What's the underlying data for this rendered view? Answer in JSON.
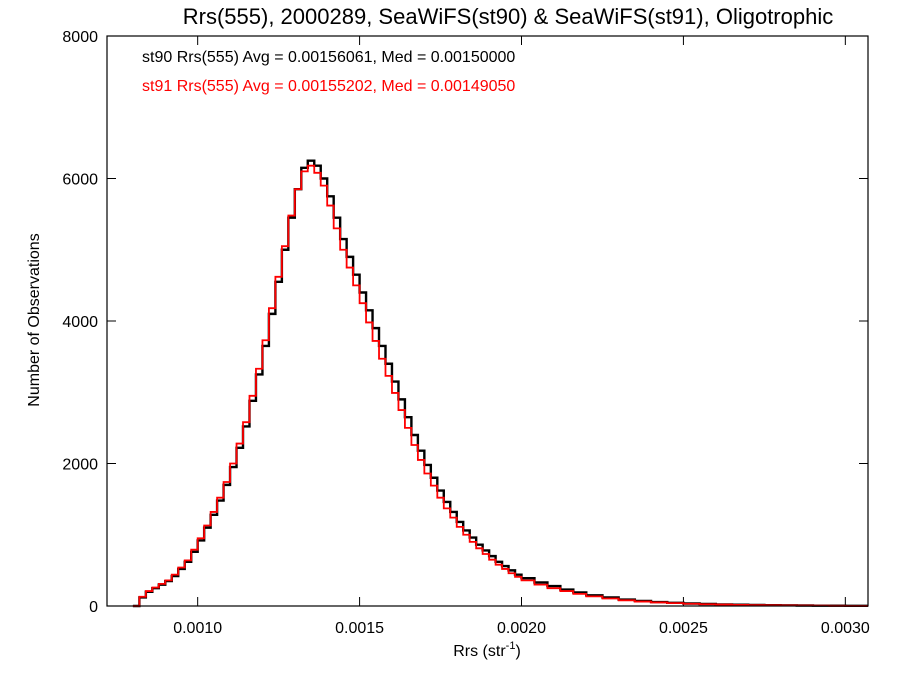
{
  "chart_data": {
    "type": "line",
    "title": "Rrs(555), 2000289, SeaWiFS(st90) & SeaWiFS(st91), Oligotrophic",
    "xlabel": "Rrs (str",
    "xlabel_sup": "-1",
    "xlabel_end": ")",
    "ylabel": "Number of Observations",
    "xlim": [
      0.00072,
      0.00307
    ],
    "ylim": [
      0,
      8000
    ],
    "xticks": [
      0.001,
      0.0015,
      0.002,
      0.0025,
      0.003
    ],
    "xtick_labels": [
      "0.0010",
      "0.0015",
      "0.0020",
      "0.0025",
      "0.0030"
    ],
    "yticks": [
      0,
      2000,
      4000,
      6000,
      8000
    ],
    "ytick_labels": [
      "0",
      "2000",
      "4000",
      "6000",
      "8000"
    ],
    "grid": false,
    "legend_placement": "top-left",
    "annotations": [
      {
        "text": "st90 Rrs(555) Avg = 0.00156061, Med = 0.00150000",
        "color": "#000000"
      },
      {
        "text": "st91 Rrs(555) Avg = 0.00155202, Med = 0.00149050",
        "color": "#ff0000"
      }
    ],
    "series": [
      {
        "name": "st90",
        "color": "#000000",
        "step": "histogram",
        "x": [
          0.0008,
          0.00082,
          0.00084,
          0.00086,
          0.00088,
          0.0009,
          0.00092,
          0.00094,
          0.00096,
          0.00098,
          0.001,
          0.00102,
          0.00104,
          0.00106,
          0.00108,
          0.0011,
          0.00112,
          0.00114,
          0.00116,
          0.00118,
          0.0012,
          0.00122,
          0.00124,
          0.00126,
          0.00128,
          0.0013,
          0.00132,
          0.00134,
          0.00136,
          0.00138,
          0.0014,
          0.00142,
          0.00144,
          0.00146,
          0.00148,
          0.0015,
          0.00152,
          0.00154,
          0.00156,
          0.00158,
          0.0016,
          0.00162,
          0.00164,
          0.00166,
          0.00168,
          0.0017,
          0.00172,
          0.00174,
          0.00176,
          0.00178,
          0.0018,
          0.00182,
          0.00184,
          0.00186,
          0.00188,
          0.0019,
          0.00192,
          0.00194,
          0.00196,
          0.00198,
          0.002,
          0.00204,
          0.00208,
          0.00212,
          0.00216,
          0.0022,
          0.00225,
          0.0023,
          0.00235,
          0.0024,
          0.00245,
          0.0025,
          0.00255,
          0.0026,
          0.00265,
          0.0027,
          0.00275,
          0.0028,
          0.00285,
          0.0029,
          0.00295,
          0.003,
          0.00305
        ],
        "y": [
          0,
          120,
          200,
          250,
          300,
          350,
          420,
          520,
          620,
          760,
          920,
          1100,
          1280,
          1480,
          1700,
          1950,
          2220,
          2520,
          2880,
          3250,
          3650,
          4100,
          4550,
          5000,
          5450,
          5850,
          6150,
          6250,
          6180,
          6000,
          5750,
          5450,
          5150,
          4900,
          4650,
          4400,
          4150,
          3900,
          3650,
          3400,
          3150,
          2900,
          2650,
          2400,
          2180,
          1980,
          1800,
          1620,
          1460,
          1320,
          1180,
          1060,
          960,
          860,
          780,
          700,
          620,
          560,
          500,
          440,
          390,
          330,
          280,
          230,
          190,
          150,
          120,
          90,
          70,
          55,
          45,
          35,
          28,
          22,
          18,
          14,
          11,
          9,
          7,
          5,
          4,
          3,
          2
        ]
      },
      {
        "name": "st91",
        "color": "#ff0000",
        "step": "histogram",
        "x": [
          0.0008,
          0.00082,
          0.00084,
          0.00086,
          0.00088,
          0.0009,
          0.00092,
          0.00094,
          0.00096,
          0.00098,
          0.001,
          0.00102,
          0.00104,
          0.00106,
          0.00108,
          0.0011,
          0.00112,
          0.00114,
          0.00116,
          0.00118,
          0.0012,
          0.00122,
          0.00124,
          0.00126,
          0.00128,
          0.0013,
          0.00132,
          0.00134,
          0.00136,
          0.00138,
          0.0014,
          0.00142,
          0.00144,
          0.00146,
          0.00148,
          0.0015,
          0.00152,
          0.00154,
          0.00156,
          0.00158,
          0.0016,
          0.00162,
          0.00164,
          0.00166,
          0.00168,
          0.0017,
          0.00172,
          0.00174,
          0.00176,
          0.00178,
          0.0018,
          0.00182,
          0.00184,
          0.00186,
          0.00188,
          0.0019,
          0.00192,
          0.00194,
          0.00196,
          0.00198,
          0.002,
          0.00204,
          0.00208,
          0.00212,
          0.00216,
          0.0022,
          0.00225,
          0.0023,
          0.00235,
          0.0024,
          0.00245,
          0.0025,
          0.00255,
          0.0026,
          0.00265,
          0.0027,
          0.00275,
          0.0028,
          0.00285,
          0.0029,
          0.00295,
          0.003,
          0.00305
        ],
        "y": [
          0,
          130,
          210,
          260,
          310,
          360,
          440,
          540,
          640,
          790,
          950,
          1130,
          1320,
          1520,
          1740,
          2000,
          2280,
          2580,
          2950,
          3330,
          3730,
          4180,
          4620,
          5050,
          5480,
          5850,
          6100,
          6180,
          6080,
          5900,
          5620,
          5300,
          5000,
          4750,
          4500,
          4250,
          3980,
          3720,
          3470,
          3230,
          2990,
          2750,
          2500,
          2260,
          2050,
          1860,
          1690,
          1520,
          1370,
          1240,
          1110,
          1000,
          900,
          810,
          730,
          650,
          580,
          520,
          460,
          410,
          360,
          300,
          250,
          210,
          170,
          135,
          105,
          80,
          62,
          50,
          40,
          32,
          25,
          20,
          16,
          12,
          10,
          8,
          6,
          5,
          3,
          2,
          2
        ]
      }
    ]
  }
}
